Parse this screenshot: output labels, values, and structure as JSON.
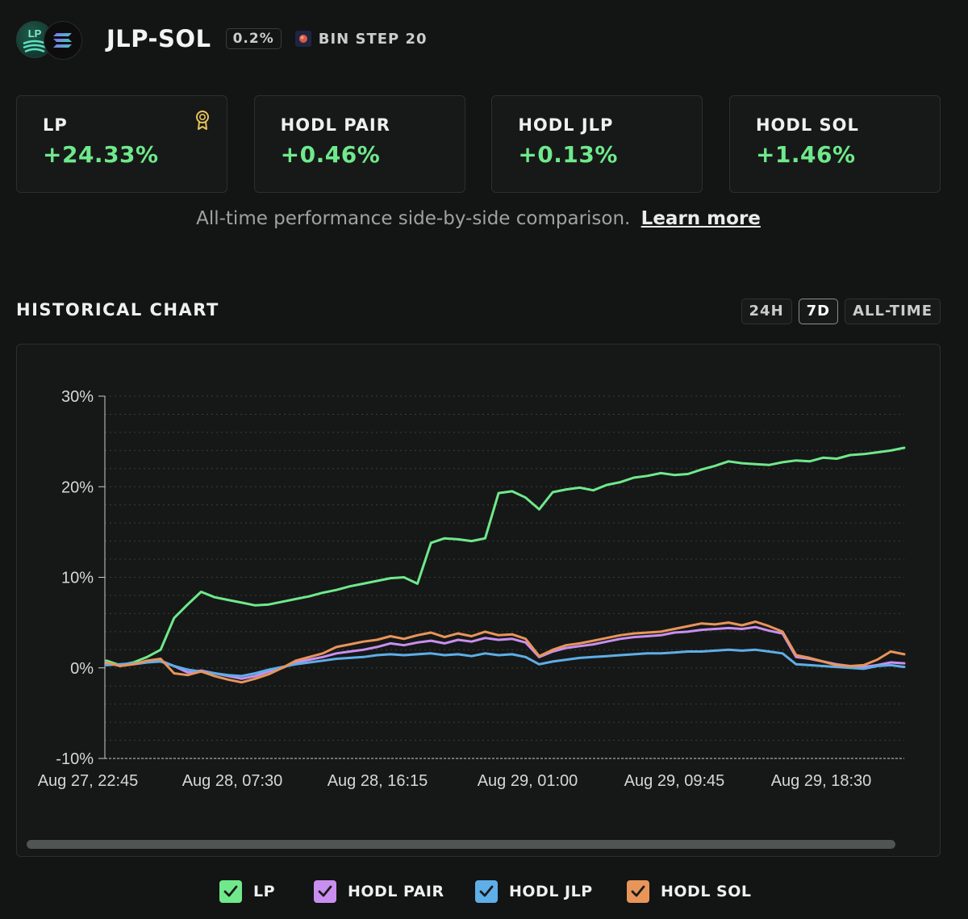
{
  "header": {
    "logo_text": "LP",
    "pair": "JLP-SOL",
    "fee": "0.2%",
    "bin_step": "BIN STEP 20"
  },
  "cards": [
    {
      "label": "LP",
      "value": "+24.33%",
      "icon": "award-icon"
    },
    {
      "label": "HODL PAIR",
      "value": "+0.46%"
    },
    {
      "label": "HODL JLP",
      "value": "+0.13%"
    },
    {
      "label": "HODL SOL",
      "value": "+1.46%"
    }
  ],
  "comparison": {
    "text": "All-time performance side-by-side comparison.",
    "link": "Learn more"
  },
  "historical": {
    "title": "HISTORICAL CHART",
    "ranges": [
      "24H",
      "7D",
      "ALL-TIME"
    ],
    "active_range": "7D"
  },
  "legend": [
    {
      "label": "LP",
      "color": "#6fe98c"
    },
    {
      "label": "HODL PAIR",
      "color": "#c98ff0"
    },
    {
      "label": "HODL JLP",
      "color": "#5eaee8"
    },
    {
      "label": "HODL SOL",
      "color": "#e8955a"
    }
  ],
  "chart_data": {
    "type": "line",
    "ylim": [
      -10,
      30
    ],
    "y_ticks": [
      "30%",
      "20%",
      "10%",
      "0%",
      "-10%"
    ],
    "y_tick_values": [
      30,
      20,
      10,
      0,
      -10
    ],
    "x_tick_labels": [
      "Aug 27, 22:45",
      "Aug 28, 07:30",
      "Aug 28, 16:15",
      "Aug 29, 01:00",
      "Aug 29, 09:45",
      "Aug 29, 18:30"
    ],
    "grid": true,
    "legend_position": "bottom",
    "series": [
      {
        "name": "LP",
        "color": "#6fe98c",
        "values": [
          0.8,
          0.3,
          0.6,
          1.2,
          2.0,
          5.5,
          7.0,
          8.4,
          7.8,
          7.5,
          7.2,
          6.9,
          7.0,
          7.3,
          7.6,
          7.9,
          8.3,
          8.6,
          9.0,
          9.3,
          9.6,
          9.9,
          10.0,
          9.3,
          13.8,
          14.3,
          14.2,
          14.0,
          14.3,
          19.3,
          19.5,
          18.8,
          17.5,
          19.4,
          19.7,
          19.9,
          19.6,
          20.2,
          20.5,
          21.0,
          21.2,
          21.5,
          21.3,
          21.4,
          21.9,
          22.3,
          22.8,
          22.6,
          22.5,
          22.4,
          22.7,
          22.9,
          22.8,
          23.2,
          23.1,
          23.5,
          23.6,
          23.8,
          24.0,
          24.3
        ]
      },
      {
        "name": "HODL PAIR",
        "color": "#c98ff0",
        "values": [
          0.5,
          0.3,
          0.4,
          0.6,
          0.8,
          0.2,
          -0.5,
          -0.3,
          -0.6,
          -0.9,
          -1.2,
          -0.9,
          -0.4,
          0.0,
          0.6,
          0.9,
          1.2,
          1.6,
          1.8,
          2.0,
          2.3,
          2.7,
          2.5,
          2.8,
          3.0,
          2.7,
          3.1,
          2.9,
          3.3,
          3.1,
          3.2,
          2.8,
          1.2,
          1.8,
          2.2,
          2.4,
          2.6,
          2.9,
          3.2,
          3.4,
          3.5,
          3.6,
          3.9,
          4.0,
          4.2,
          4.3,
          4.4,
          4.3,
          4.5,
          4.1,
          3.8,
          1.2,
          1.0,
          0.7,
          0.4,
          0.2,
          0.1,
          0.3,
          0.6,
          0.5
        ]
      },
      {
        "name": "HODL JLP",
        "color": "#5eaee8",
        "values": [
          0.3,
          0.4,
          0.5,
          0.6,
          0.7,
          0.2,
          -0.2,
          -0.4,
          -0.6,
          -0.8,
          -0.9,
          -0.6,
          -0.2,
          0.1,
          0.4,
          0.6,
          0.8,
          1.0,
          1.1,
          1.2,
          1.4,
          1.5,
          1.4,
          1.5,
          1.6,
          1.4,
          1.5,
          1.3,
          1.6,
          1.4,
          1.5,
          1.2,
          0.4,
          0.7,
          0.9,
          1.1,
          1.2,
          1.3,
          1.4,
          1.5,
          1.6,
          1.6,
          1.7,
          1.8,
          1.8,
          1.9,
          2.0,
          1.9,
          2.0,
          1.8,
          1.6,
          0.4,
          0.3,
          0.2,
          0.1,
          0.0,
          -0.1,
          0.2,
          0.3,
          0.1
        ]
      },
      {
        "name": "HODL SOL",
        "color": "#e8955a",
        "values": [
          0.6,
          0.2,
          0.4,
          0.8,
          1.0,
          -0.6,
          -0.8,
          -0.4,
          -0.9,
          -1.3,
          -1.6,
          -1.2,
          -0.7,
          0.0,
          0.8,
          1.2,
          1.6,
          2.3,
          2.6,
          2.9,
          3.1,
          3.5,
          3.2,
          3.6,
          3.9,
          3.4,
          3.8,
          3.5,
          4.0,
          3.6,
          3.7,
          3.2,
          1.3,
          2.0,
          2.5,
          2.7,
          3.0,
          3.3,
          3.6,
          3.8,
          3.9,
          4.0,
          4.3,
          4.6,
          4.9,
          4.8,
          5.0,
          4.7,
          5.1,
          4.6,
          4.0,
          1.4,
          1.1,
          0.7,
          0.3,
          0.2,
          0.3,
          0.9,
          1.8,
          1.5
        ]
      }
    ]
  }
}
